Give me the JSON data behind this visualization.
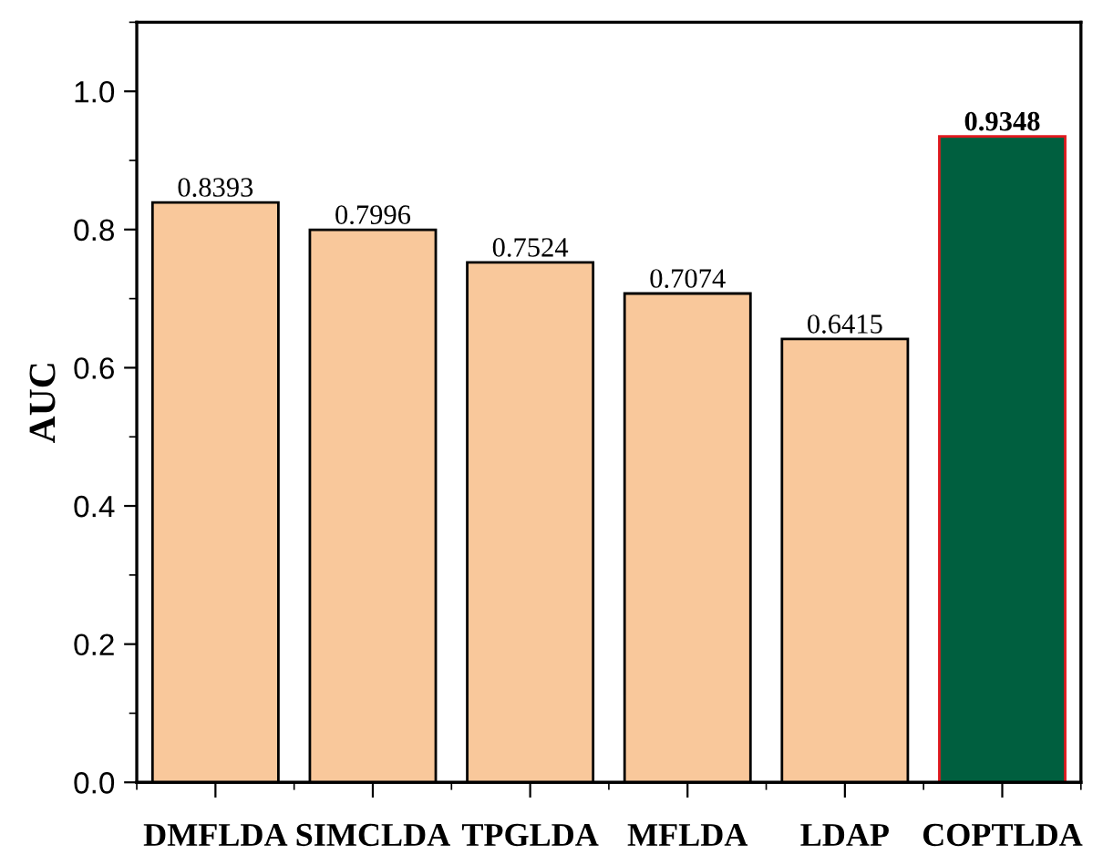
{
  "chart_data": {
    "type": "bar",
    "ylabel": "AUC",
    "categories": [
      "DMFLDA",
      "SIMCLDA",
      "TPGLDA",
      "MFLDA",
      "LDAP",
      "COPTLDA"
    ],
    "values": [
      0.8393,
      0.7996,
      0.7524,
      0.7074,
      0.6415,
      0.9348
    ],
    "colors": [
      "#f9c89b",
      "#f9c89b",
      "#f9c89b",
      "#f9c89b",
      "#f9c89b",
      "#005f3f"
    ],
    "value_labels": [
      "0.8393",
      "0.7996",
      "0.7524",
      "0.7074",
      "0.6415",
      "0.9348"
    ],
    "ylim": [
      0,
      1.1
    ],
    "yticks": [
      {
        "value": 0,
        "label": "0.0"
      },
      0.2,
      0.4,
      0.6,
      0.8,
      {
        "value": 1,
        "label": "1.0"
      }
    ],
    "grid": false,
    "legend": false
  }
}
